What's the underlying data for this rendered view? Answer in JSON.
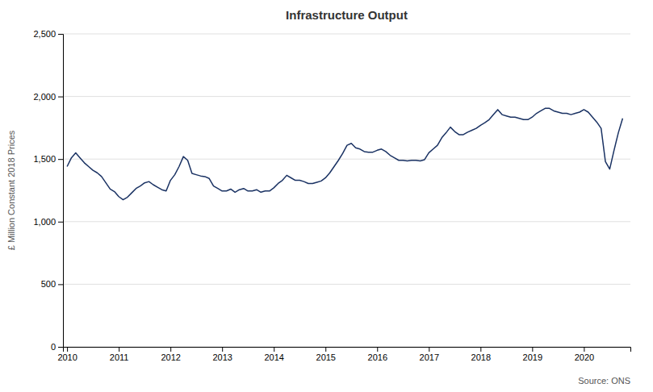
{
  "chart_data": {
    "type": "line",
    "title": "Infrastructure Output",
    "ylabel": "£ Million Constant 2018 Prices",
    "annotation": "Source: ONS",
    "color": "#1a3263",
    "grid": true,
    "x": [
      2010,
      2010.083333,
      2010.166667,
      2010.25,
      2010.333333,
      2010.416667,
      2010.5,
      2010.583333,
      2010.666667,
      2010.75,
      2010.833333,
      2010.916667,
      2011,
      2011.083333,
      2011.166667,
      2011.25,
      2011.333333,
      2011.416667,
      2011.5,
      2011.583333,
      2011.666667,
      2011.75,
      2011.833333,
      2011.916667,
      2012,
      2012.083333,
      2012.166667,
      2012.25,
      2012.333333,
      2012.416667,
      2012.5,
      2012.583333,
      2012.666667,
      2012.75,
      2012.833333,
      2012.916667,
      2013,
      2013.083333,
      2013.166667,
      2013.25,
      2013.333333,
      2013.416667,
      2013.5,
      2013.583333,
      2013.666667,
      2013.75,
      2013.833333,
      2013.916667,
      2014,
      2014.083333,
      2014.166667,
      2014.25,
      2014.333333,
      2014.416667,
      2014.5,
      2014.583333,
      2014.666667,
      2014.75,
      2014.833333,
      2014.916667,
      2015,
      2015.083333,
      2015.166667,
      2015.25,
      2015.333333,
      2015.416667,
      2015.5,
      2015.583333,
      2015.666667,
      2015.75,
      2015.833333,
      2015.916667,
      2016,
      2016.083333,
      2016.166667,
      2016.25,
      2016.333333,
      2016.416667,
      2016.5,
      2016.583333,
      2016.666667,
      2016.75,
      2016.833333,
      2016.916667,
      2017,
      2017.083333,
      2017.166667,
      2017.25,
      2017.333333,
      2017.416667,
      2017.5,
      2017.583333,
      2017.666667,
      2017.75,
      2017.833333,
      2017.916667,
      2018,
      2018.083333,
      2018.166667,
      2018.25,
      2018.333333,
      2018.416667,
      2018.5,
      2018.583333,
      2018.666667,
      2018.75,
      2018.833333,
      2018.916667,
      2019,
      2019.083333,
      2019.166667,
      2019.25,
      2019.333333,
      2019.416667,
      2019.5,
      2019.583333,
      2019.666667,
      2019.75,
      2019.833333,
      2019.916667,
      2020,
      2020.083333,
      2020.166667,
      2020.25,
      2020.333333,
      2020.416667,
      2020.5,
      2020.583333,
      2020.666667,
      2020.75
    ],
    "values": [
      1440,
      1510,
      1550,
      1510,
      1470,
      1440,
      1410,
      1390,
      1360,
      1310,
      1260,
      1240,
      1200,
      1175,
      1195,
      1230,
      1265,
      1285,
      1310,
      1320,
      1295,
      1275,
      1255,
      1245,
      1330,
      1375,
      1440,
      1520,
      1490,
      1385,
      1375,
      1365,
      1360,
      1345,
      1285,
      1265,
      1245,
      1245,
      1260,
      1235,
      1255,
      1265,
      1245,
      1245,
      1255,
      1235,
      1245,
      1245,
      1270,
      1305,
      1330,
      1370,
      1350,
      1330,
      1330,
      1320,
      1305,
      1305,
      1315,
      1325,
      1350,
      1390,
      1440,
      1490,
      1545,
      1610,
      1625,
      1590,
      1580,
      1560,
      1555,
      1555,
      1570,
      1580,
      1560,
      1530,
      1510,
      1490,
      1490,
      1485,
      1490,
      1490,
      1485,
      1495,
      1550,
      1580,
      1610,
      1670,
      1710,
      1755,
      1720,
      1695,
      1695,
      1715,
      1730,
      1745,
      1770,
      1790,
      1815,
      1855,
      1895,
      1855,
      1845,
      1835,
      1835,
      1825,
      1815,
      1815,
      1835,
      1865,
      1885,
      1905,
      1905,
      1885,
      1875,
      1865,
      1865,
      1855,
      1865,
      1875,
      1895,
      1875,
      1835,
      1795,
      1745,
      1480,
      1420,
      1570,
      1710,
      1825
    ],
    "xlim": [
      2009.92,
      2020.9
    ],
    "xticks": [
      2010,
      2011,
      2012,
      2013,
      2014,
      2015,
      2016,
      2017,
      2018,
      2019,
      2020
    ],
    "ylim": [
      0,
      2500
    ],
    "yticks": [
      0,
      500,
      {
        "value": 1000,
        "label": "1,000"
      },
      {
        "value": 1500,
        "label": "1,500"
      },
      {
        "value": 2000,
        "label": "2,000"
      },
      {
        "value": 2500,
        "label": "2,500"
      }
    ]
  }
}
